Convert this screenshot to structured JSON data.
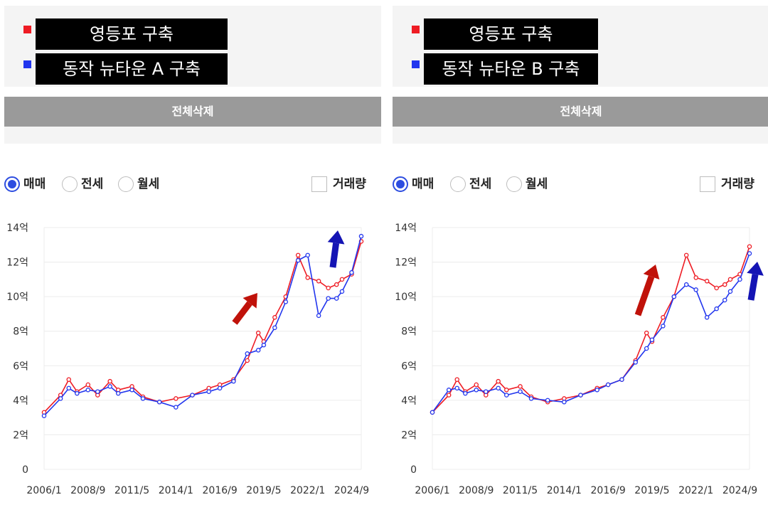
{
  "chart_data": [
    {
      "type": "line",
      "legend": {
        "items": [
          {
            "label": "영등포 구축",
            "color": "#ee1c24"
          },
          {
            "label": "동작 뉴타운 A 구축",
            "color": "#2236ee"
          }
        ]
      },
      "clear_button": "전체삭제",
      "options": {
        "radios": [
          {
            "label": "매매",
            "selected": true
          },
          {
            "label": "전세",
            "selected": false
          },
          {
            "label": "월세",
            "selected": false
          }
        ],
        "checkbox": {
          "label": "거래량",
          "checked": false
        }
      },
      "y_ticks": [
        {
          "value": 0,
          "label": "0"
        },
        {
          "value": 2,
          "label": "2억"
        },
        {
          "value": 4,
          "label": "4억"
        },
        {
          "value": 6,
          "label": "6억"
        },
        {
          "value": 8,
          "label": "8억"
        },
        {
          "value": 10,
          "label": "10억"
        },
        {
          "value": 12,
          "label": "12억"
        },
        {
          "value": 14,
          "label": "14억"
        }
      ],
      "x_ticks": [
        "2006/1",
        "2008/9",
        "2011/5",
        "2014/1",
        "2016/9",
        "2019/5",
        "2022/1",
        "2024/9"
      ],
      "ylim": [
        0,
        14
      ],
      "grid": true,
      "series": [
        {
          "name": "영등포 구축",
          "color": "#ee1c24",
          "values": [
            [
              "2006/1",
              3.3
            ],
            [
              "2007/1",
              4.3
            ],
            [
              "2007/7",
              5.2
            ],
            [
              "2008/1",
              4.5
            ],
            [
              "2008/9",
              4.9
            ],
            [
              "2009/4",
              4.3
            ],
            [
              "2010/1",
              5.1
            ],
            [
              "2010/7",
              4.6
            ],
            [
              "2011/5",
              4.8
            ],
            [
              "2012/1",
              4.2
            ],
            [
              "2013/1",
              3.9
            ],
            [
              "2014/1",
              4.1
            ],
            [
              "2015/1",
              4.3
            ],
            [
              "2016/1",
              4.7
            ],
            [
              "2016/9",
              4.9
            ],
            [
              "2017/7",
              5.2
            ],
            [
              "2018/5",
              6.3
            ],
            [
              "2019/1",
              7.9
            ],
            [
              "2019/5",
              7.4
            ],
            [
              "2020/1",
              8.8
            ],
            [
              "2020/9",
              10.0
            ],
            [
              "2021/6",
              12.4
            ],
            [
              "2022/1",
              11.1
            ],
            [
              "2022/9",
              10.9
            ],
            [
              "2023/4",
              10.5
            ],
            [
              "2023/10",
              10.7
            ],
            [
              "2024/2",
              11.0
            ],
            [
              "2024/9",
              11.3
            ],
            [
              "2025/4",
              13.2
            ]
          ]
        },
        {
          "name": "동작 뉴타운 A 구축",
          "color": "#2236ee",
          "values": [
            [
              "2006/1",
              3.1
            ],
            [
              "2007/1",
              4.1
            ],
            [
              "2007/7",
              4.7
            ],
            [
              "2008/1",
              4.4
            ],
            [
              "2008/9",
              4.6
            ],
            [
              "2009/4",
              4.5
            ],
            [
              "2010/1",
              4.8
            ],
            [
              "2010/7",
              4.4
            ],
            [
              "2011/5",
              4.6
            ],
            [
              "2012/1",
              4.1
            ],
            [
              "2013/1",
              3.9
            ],
            [
              "2014/1",
              3.6
            ],
            [
              "2015/1",
              4.3
            ],
            [
              "2016/1",
              4.5
            ],
            [
              "2016/9",
              4.7
            ],
            [
              "2017/7",
              5.1
            ],
            [
              "2018/5",
              6.7
            ],
            [
              "2019/1",
              6.9
            ],
            [
              "2019/5",
              7.2
            ],
            [
              "2020/1",
              8.2
            ],
            [
              "2020/9",
              9.7
            ],
            [
              "2021/6",
              12.1
            ],
            [
              "2022/1",
              12.4
            ],
            [
              "2022/9",
              8.9
            ],
            [
              "2023/4",
              9.9
            ],
            [
              "2023/10",
              9.9
            ],
            [
              "2024/2",
              10.3
            ],
            [
              "2024/9",
              11.4
            ],
            [
              "2025/4",
              13.5
            ]
          ]
        }
      ],
      "annotations": [
        {
          "type": "arrow",
          "color": "#c0120a",
          "direction": "up-right"
        },
        {
          "type": "arrow",
          "color": "#1414b4",
          "direction": "up"
        }
      ]
    },
    {
      "type": "line",
      "legend": {
        "items": [
          {
            "label": "영등포 구축",
            "color": "#ee1c24"
          },
          {
            "label": "동작 뉴타운 B 구축",
            "color": "#2236ee"
          }
        ]
      },
      "clear_button": "전체삭제",
      "options": {
        "radios": [
          {
            "label": "매매",
            "selected": true
          },
          {
            "label": "전세",
            "selected": false
          },
          {
            "label": "월세",
            "selected": false
          }
        ],
        "checkbox": {
          "label": "거래량",
          "checked": false
        }
      },
      "y_ticks": [
        {
          "value": 0,
          "label": "0"
        },
        {
          "value": 2,
          "label": "2억"
        },
        {
          "value": 4,
          "label": "4억"
        },
        {
          "value": 6,
          "label": "6억"
        },
        {
          "value": 8,
          "label": "8억"
        },
        {
          "value": 10,
          "label": "10억"
        },
        {
          "value": 12,
          "label": "12억"
        },
        {
          "value": 14,
          "label": "14억"
        }
      ],
      "x_ticks": [
        "2006/1",
        "2008/9",
        "2011/5",
        "2014/1",
        "2016/9",
        "2019/5",
        "2022/1",
        "2024/9"
      ],
      "ylim": [
        0,
        14
      ],
      "grid": true,
      "series": [
        {
          "name": "영등포 구축",
          "color": "#ee1c24",
          "values": [
            [
              "2006/1",
              3.3
            ],
            [
              "2007/1",
              4.3
            ],
            [
              "2007/7",
              5.2
            ],
            [
              "2008/1",
              4.5
            ],
            [
              "2008/9",
              4.9
            ],
            [
              "2009/4",
              4.3
            ],
            [
              "2010/1",
              5.1
            ],
            [
              "2010/7",
              4.6
            ],
            [
              "2011/5",
              4.8
            ],
            [
              "2012/1",
              4.2
            ],
            [
              "2013/1",
              3.9
            ],
            [
              "2014/1",
              4.1
            ],
            [
              "2015/1",
              4.3
            ],
            [
              "2016/1",
              4.7
            ],
            [
              "2016/9",
              4.9
            ],
            [
              "2017/7",
              5.2
            ],
            [
              "2018/5",
              6.3
            ],
            [
              "2019/1",
              7.9
            ],
            [
              "2019/5",
              7.4
            ],
            [
              "2020/1",
              8.8
            ],
            [
              "2020/9",
              10.0
            ],
            [
              "2021/6",
              12.4
            ],
            [
              "2022/1",
              11.1
            ],
            [
              "2022/9",
              10.9
            ],
            [
              "2023/4",
              10.5
            ],
            [
              "2023/10",
              10.7
            ],
            [
              "2024/2",
              11.0
            ],
            [
              "2024/9",
              11.3
            ],
            [
              "2025/4",
              12.9
            ]
          ]
        },
        {
          "name": "동작 뉴타운 B 구축",
          "color": "#2236ee",
          "values": [
            [
              "2006/1",
              3.3
            ],
            [
              "2007/1",
              4.6
            ],
            [
              "2007/7",
              4.7
            ],
            [
              "2008/1",
              4.4
            ],
            [
              "2008/9",
              4.6
            ],
            [
              "2009/4",
              4.5
            ],
            [
              "2010/1",
              4.7
            ],
            [
              "2010/7",
              4.3
            ],
            [
              "2011/5",
              4.5
            ],
            [
              "2012/1",
              4.1
            ],
            [
              "2013/1",
              4.0
            ],
            [
              "2014/1",
              3.9
            ],
            [
              "2015/1",
              4.3
            ],
            [
              "2016/1",
              4.6
            ],
            [
              "2016/9",
              4.9
            ],
            [
              "2017/7",
              5.2
            ],
            [
              "2018/5",
              6.2
            ],
            [
              "2019/1",
              7.0
            ],
            [
              "2019/5",
              7.5
            ],
            [
              "2020/1",
              8.3
            ],
            [
              "2020/9",
              10.0
            ],
            [
              "2021/6",
              10.7
            ],
            [
              "2022/1",
              10.4
            ],
            [
              "2022/9",
              8.8
            ],
            [
              "2023/4",
              9.3
            ],
            [
              "2023/10",
              9.8
            ],
            [
              "2024/2",
              10.3
            ],
            [
              "2024/9",
              11.0
            ],
            [
              "2025/4",
              12.5
            ]
          ]
        }
      ],
      "annotations": [
        {
          "type": "arrow",
          "color": "#c0120a",
          "direction": "up-right"
        },
        {
          "type": "arrow",
          "color": "#1414b4",
          "direction": "up"
        }
      ]
    }
  ]
}
